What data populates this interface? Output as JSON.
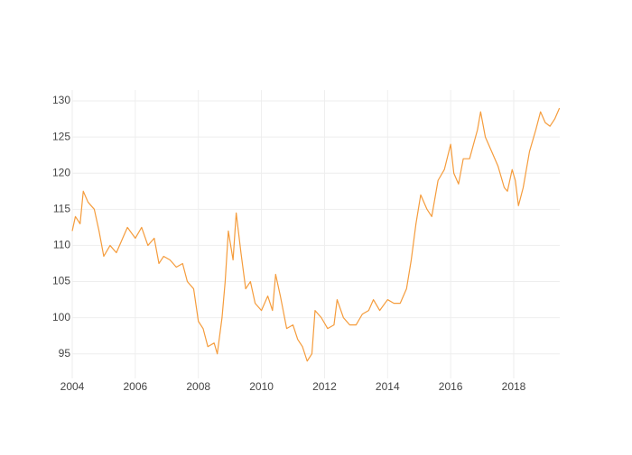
{
  "chart_data": {
    "type": "line",
    "x": [
      2004.0,
      2004.1,
      2004.25,
      2004.35,
      2004.5,
      2004.7,
      2004.85,
      2005.0,
      2005.2,
      2005.4,
      2005.6,
      2005.75,
      2006.0,
      2006.2,
      2006.4,
      2006.6,
      2006.75,
      2006.9,
      2007.1,
      2007.3,
      2007.5,
      2007.65,
      2007.85,
      2008.0,
      2008.15,
      2008.3,
      2008.5,
      2008.6,
      2008.75,
      2008.85,
      2008.95,
      2009.1,
      2009.2,
      2009.35,
      2009.5,
      2009.65,
      2009.8,
      2010.0,
      2010.2,
      2010.35,
      2010.45,
      2010.6,
      2010.8,
      2011.0,
      2011.15,
      2011.3,
      2011.45,
      2011.6,
      2011.7,
      2011.9,
      2012.1,
      2012.3,
      2012.4,
      2012.6,
      2012.8,
      2013.0,
      2013.2,
      2013.4,
      2013.55,
      2013.75,
      2014.0,
      2014.2,
      2014.4,
      2014.6,
      2014.75,
      2014.9,
      2015.05,
      2015.25,
      2015.4,
      2015.6,
      2015.8,
      2016.0,
      2016.1,
      2016.25,
      2016.4,
      2016.6,
      2016.85,
      2016.95,
      2017.1,
      2017.3,
      2017.5,
      2017.7,
      2017.8,
      2017.95,
      2018.05,
      2018.15,
      2018.3,
      2018.5,
      2018.7,
      2018.85,
      2019.0,
      2019.15,
      2019.3,
      2019.45
    ],
    "series": [
      {
        "color": "#f59c3c",
        "values": [
          112,
          114,
          113,
          117.5,
          116,
          115,
          112,
          108.5,
          110,
          109,
          111,
          112.5,
          111,
          112.5,
          110,
          111,
          107.5,
          108.5,
          108,
          107,
          107.5,
          105,
          104,
          99.5,
          98.5,
          96,
          96.5,
          95,
          100,
          105,
          112,
          108,
          114.5,
          109,
          104,
          105,
          102,
          101,
          103,
          101,
          106,
          103,
          98.5,
          99,
          97,
          96,
          94,
          95,
          101,
          100,
          98.5,
          99,
          102.5,
          100,
          99,
          99,
          100.5,
          101,
          102.5,
          101,
          102.5,
          102,
          102,
          104,
          108,
          113,
          117,
          115,
          114,
          119,
          120.5,
          124,
          120,
          118.5,
          122,
          122,
          126,
          128.5,
          125,
          123,
          121,
          118,
          117.5,
          120.5,
          119,
          115.5,
          118,
          123,
          126,
          128.5,
          127,
          126.5,
          127.5,
          129
        ]
      }
    ],
    "xlim": [
      2004,
      2019.46
    ],
    "xticks": [
      2004,
      2006,
      2008,
      2010,
      2012,
      2014,
      2016,
      2018
    ],
    "ylim": [
      91.6,
      131.5
    ],
    "yticks": [
      95,
      100,
      105,
      110,
      115,
      120,
      125,
      130
    ],
    "grid": true
  }
}
